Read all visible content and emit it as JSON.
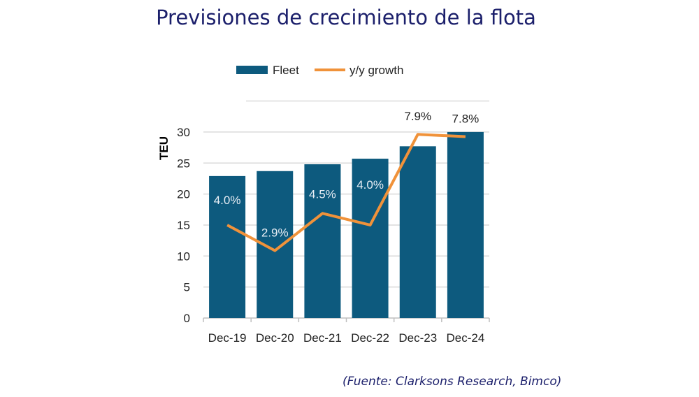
{
  "title": "Previsiones de crecimiento de la flota",
  "source": "(Fuente: Clarksons Research, Bimco)",
  "chart_data": {
    "type": "bar",
    "categories": [
      "Dec-19",
      "Dec-20",
      "Dec-21",
      "Dec-22",
      "Dec-23",
      "Dec-24"
    ],
    "series": [
      {
        "name": "Fleet",
        "type": "bar",
        "axis": "left",
        "color": "#0d5a7e",
        "values": [
          22.9,
          23.7,
          24.8,
          25.7,
          27.7,
          30.0
        ]
      },
      {
        "name": "y/y growth",
        "type": "line",
        "axis": "right",
        "color": "#f0923a",
        "values": [
          4.0,
          2.9,
          4.5,
          4.0,
          7.9,
          7.8
        ],
        "labels": [
          "4.0%",
          "2.9%",
          "4.5%",
          "4.0%",
          "7.9%",
          "7.8%"
        ]
      }
    ],
    "ylabel": "TEU",
    "ylim": [
      0,
      35
    ],
    "yticks": [
      "0",
      "5",
      "10",
      "15",
      "20",
      "25",
      "30"
    ],
    "y2lim": [
      0,
      9.33
    ],
    "grid": true,
    "legend": "top"
  }
}
